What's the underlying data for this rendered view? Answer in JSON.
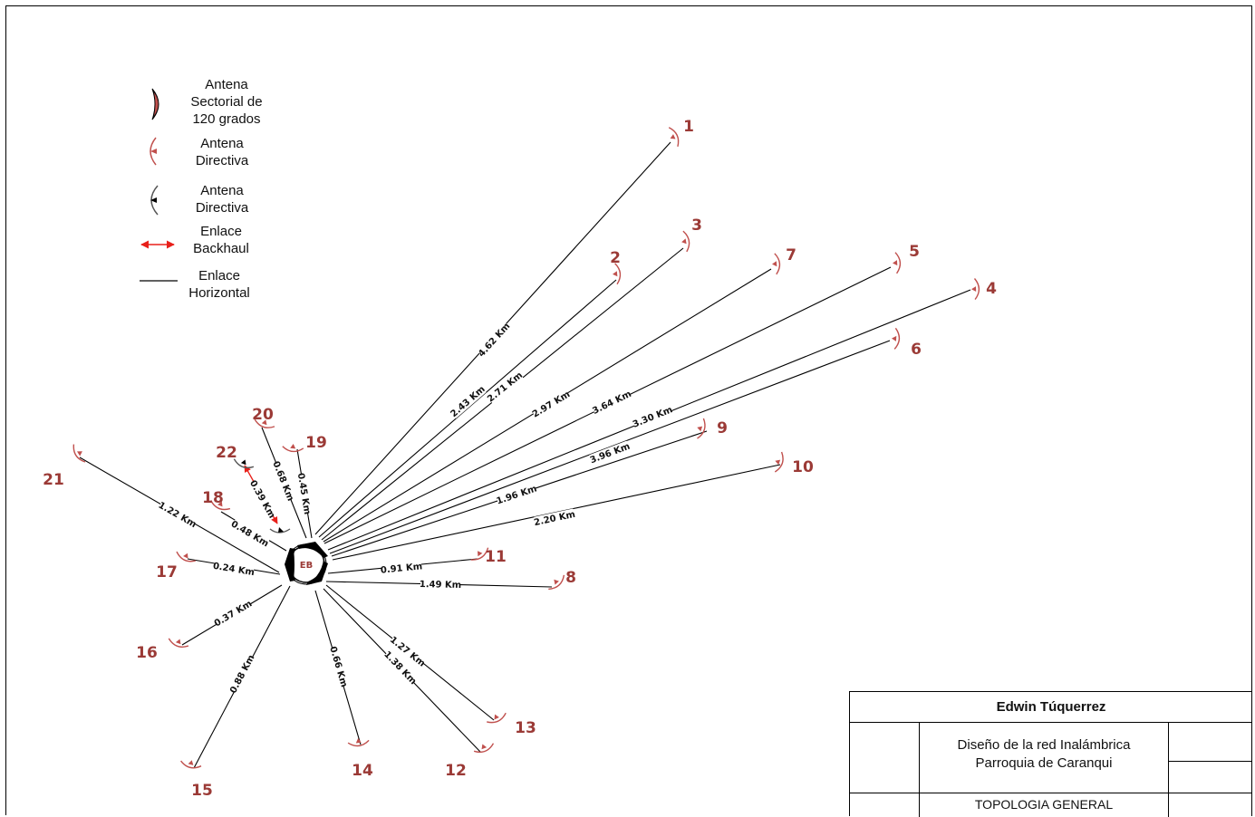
{
  "legend": {
    "sectorial": "Antena\nSectorial de\n120 grados",
    "directiva_red": "Antena\nDirectiva",
    "directiva_black": "Antena\nDirectiva",
    "backhaul": "Enlace\nBackhaul",
    "horizontal": "Enlace\nHorizontal"
  },
  "base_station": {
    "label": "EB"
  },
  "nodes": [
    {
      "id": "1",
      "distance": "4.62 Km"
    },
    {
      "id": "2",
      "distance": "2.43 Km"
    },
    {
      "id": "3",
      "distance": "2.71 Km"
    },
    {
      "id": "4",
      "distance": "3.30 Km"
    },
    {
      "id": "5",
      "distance": "3.64 Km"
    },
    {
      "id": "6",
      "distance": "3.96 Km"
    },
    {
      "id": "7",
      "distance": "2.97 Km"
    },
    {
      "id": "8",
      "distance": "1.49 Km"
    },
    {
      "id": "9",
      "distance": "1.96 Km"
    },
    {
      "id": "10",
      "distance": "2.20 Km"
    },
    {
      "id": "11",
      "distance": "0.91 Km"
    },
    {
      "id": "12",
      "distance": "1.38 Km"
    },
    {
      "id": "13",
      "distance": "1.27 Km"
    },
    {
      "id": "14",
      "distance": "0.66 Km"
    },
    {
      "id": "15",
      "distance": "0.88 Km"
    },
    {
      "id": "16",
      "distance": "0.37 Km"
    },
    {
      "id": "17",
      "distance": "0.24 Km"
    },
    {
      "id": "18",
      "distance": "0.48 Km"
    },
    {
      "id": "19",
      "distance": "0.45 Km"
    },
    {
      "id": "20",
      "distance": "0.68 Km"
    },
    {
      "id": "21",
      "distance": "1.22 Km"
    },
    {
      "id": "22",
      "distance": "0.39 Km"
    }
  ],
  "colors": {
    "node_label": "#9b3a36",
    "antenna_red": "#c0504d",
    "backhaul": "#e8201a",
    "line": "#000000"
  },
  "title_block": {
    "author": "Edwin Túquerrez",
    "project_line1": "Diseño de la red Inalámbrica",
    "project_line2": "Parroquia de Caranqui",
    "sheet": "TOPOLOGIA GENERAL"
  }
}
